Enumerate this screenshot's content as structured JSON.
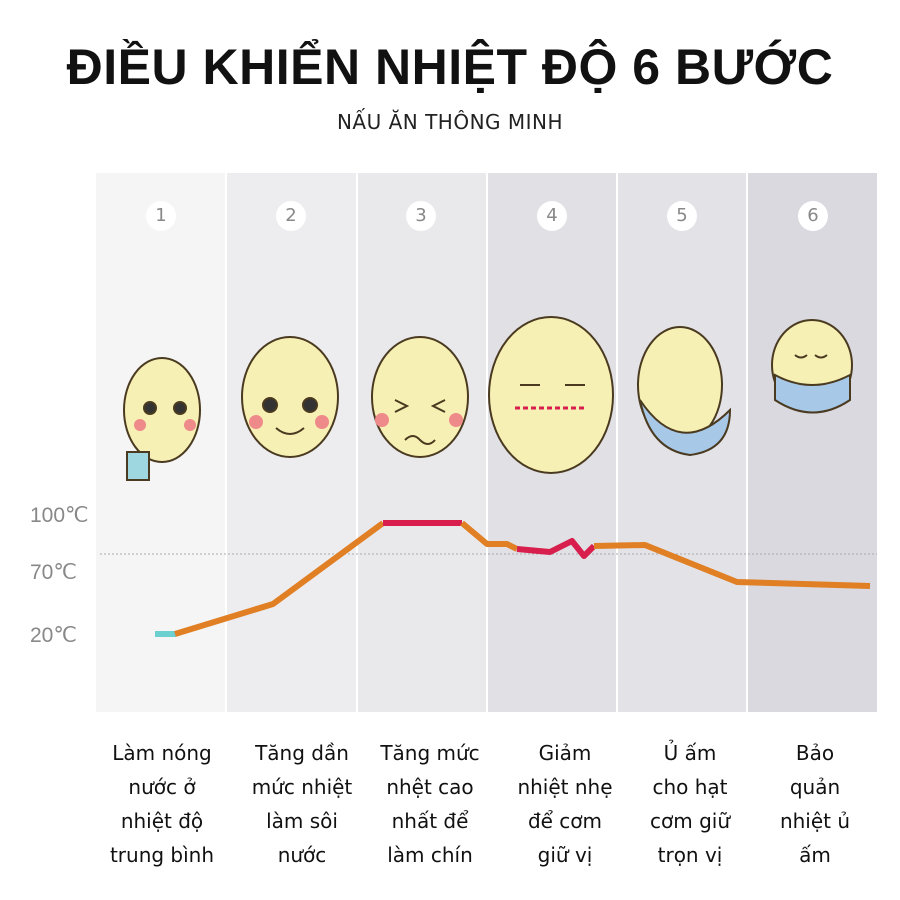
{
  "title": "ĐIỀU KHIỂN NHIỆT ĐỘ 6 BƯỚC",
  "subtitle": "NẤU ĂN THÔNG MINH",
  "y_labels": [
    "100℃",
    "70℃",
    "20℃"
  ],
  "steps": [
    {
      "number": "1",
      "caption": "Làm nóng\nnước ở\nnhiệt độ\ntrung bình",
      "shade": "#f5f5f6"
    },
    {
      "number": "2",
      "caption": "Tăng dần\nmức nhiệt\nlàm sôi\nnước",
      "shade": "#ededef"
    },
    {
      "number": "3",
      "caption": "Tăng mức\nnhệt cao\nnhất để\nlàm chín",
      "shade": "#e9e9ec"
    },
    {
      "number": "4",
      "caption": "Giảm\nnhiệt nhẹ\nđể cơm\ngiữ vị",
      "shade": "#e0e0e5"
    },
    {
      "number": "5",
      "caption": "Ủ ấm\ncho hạt\ncơm giữ\ntrọn vị",
      "shade": "#e2e2e7"
    },
    {
      "number": "6",
      "caption": "Bảo\nquản\nnhiệt ủ\nấm",
      "shade": "#d9d9df"
    }
  ],
  "colors": {
    "heating": "#e07f23",
    "peak": "#d81e4d",
    "start": "#6ccfd0"
  }
}
